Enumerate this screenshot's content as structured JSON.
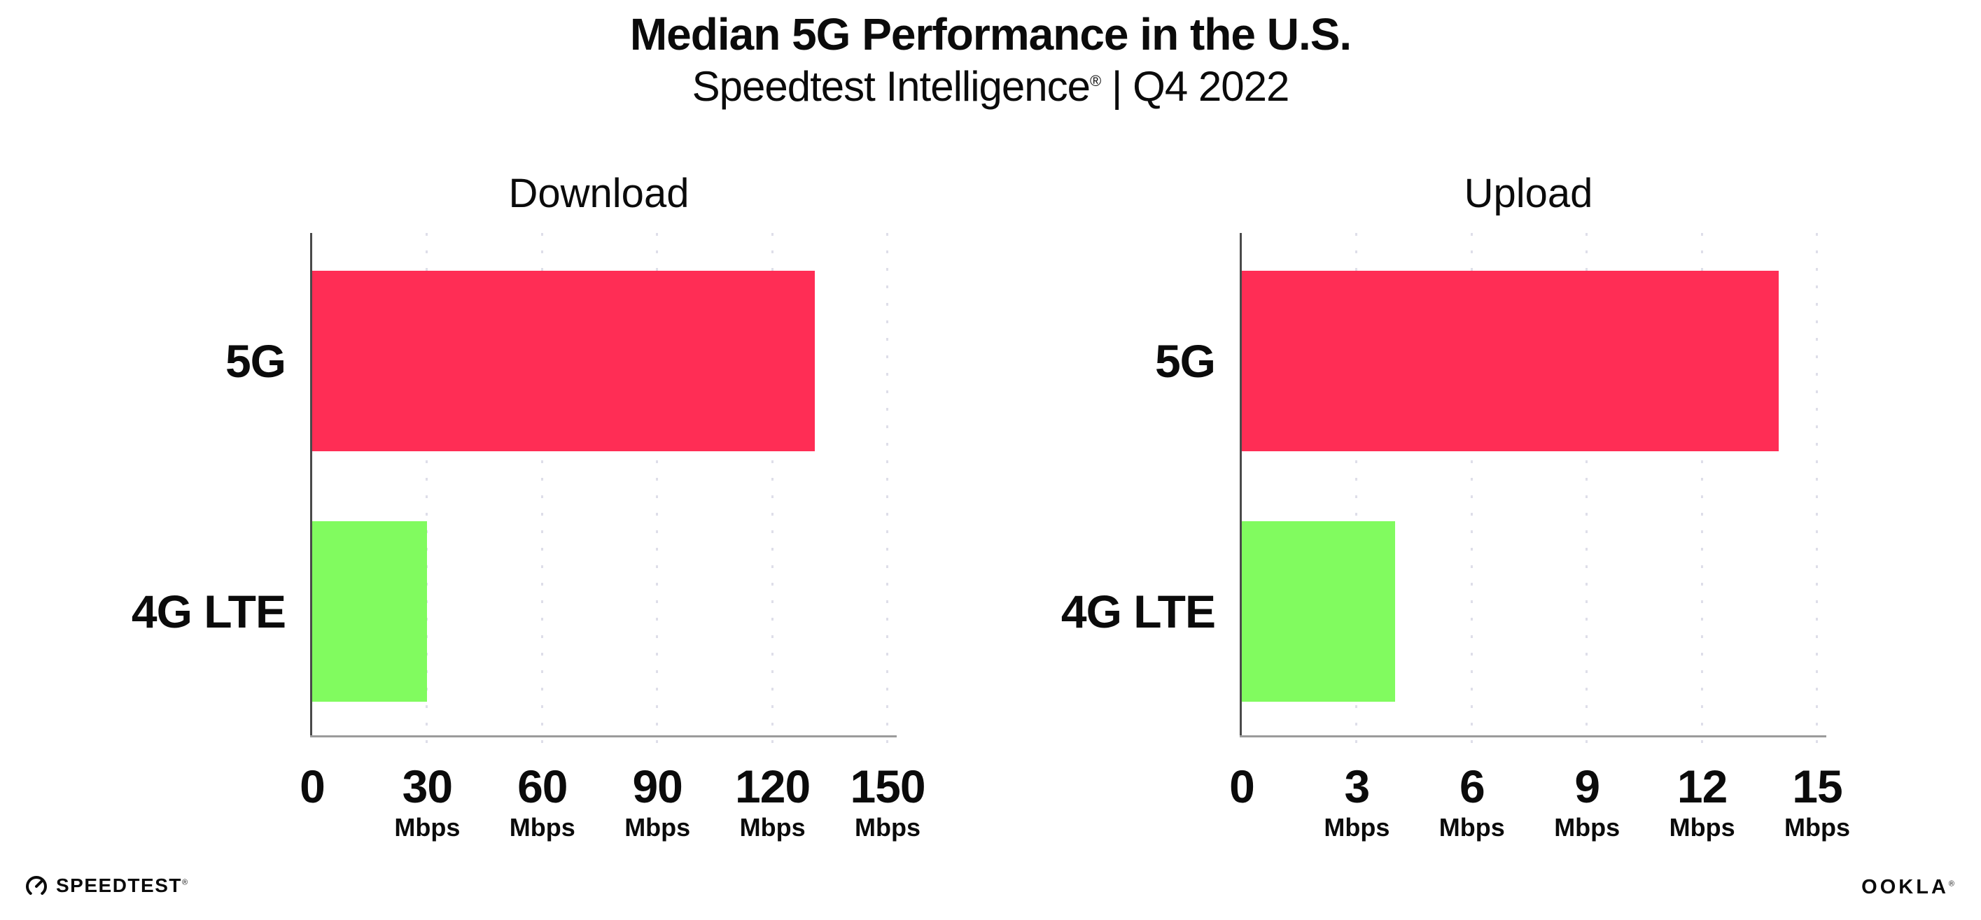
{
  "header": {
    "title": "Median 5G Performance in the U.S.",
    "subtitle_brand": "Speedtest Intelligence",
    "subtitle_reg": "®",
    "subtitle_rest": " | Q4 2022"
  },
  "chart_data": [
    {
      "type": "bar",
      "orientation": "horizontal",
      "title": "Download",
      "categories": [
        "5G",
        "4G LTE"
      ],
      "values": [
        131,
        30
      ],
      "unit": "Mbps",
      "xlim": [
        0,
        150
      ],
      "xticks": [
        0,
        30,
        60,
        90,
        120,
        150
      ],
      "ticks": [
        {
          "label": "0",
          "unit": ""
        },
        {
          "label": "30",
          "unit": "Mbps"
        },
        {
          "label": "60",
          "unit": "Mbps"
        },
        {
          "label": "90",
          "unit": "Mbps"
        },
        {
          "label": "120",
          "unit": "Mbps"
        },
        {
          "label": "150",
          "unit": "Mbps"
        }
      ],
      "bar_colors": [
        "#FF2D55",
        "#81FB5F"
      ],
      "grid": "dotted-vertical",
      "legend": false
    },
    {
      "type": "bar",
      "orientation": "horizontal",
      "title": "Upload",
      "categories": [
        "5G",
        "4G LTE"
      ],
      "values": [
        14,
        4
      ],
      "unit": "Mbps",
      "xlim": [
        0,
        15
      ],
      "xticks": [
        0,
        3,
        6,
        9,
        12,
        15
      ],
      "ticks": [
        {
          "label": "0",
          "unit": ""
        },
        {
          "label": "3",
          "unit": "Mbps"
        },
        {
          "label": "6",
          "unit": "Mbps"
        },
        {
          "label": "9",
          "unit": "Mbps"
        },
        {
          "label": "12",
          "unit": "Mbps"
        },
        {
          "label": "15",
          "unit": "Mbps"
        }
      ],
      "bar_colors": [
        "#FF2D55",
        "#81FB5F"
      ],
      "grid": "dotted-vertical",
      "legend": false
    }
  ],
  "footer": {
    "speedtest_wordmark": "SPEEDTEST",
    "speedtest_reg": "®",
    "ookla_wordmark": "OOKLA",
    "ookla_reg": "®"
  },
  "colors": {
    "bar-5g": "#FF2D55",
    "bar-4g": "#81FB5F",
    "grid": "#DEDEE9",
    "axis-x": "#9B9B9B",
    "axis-y": "#4A4A4A",
    "ink": "#0B0B0B"
  }
}
